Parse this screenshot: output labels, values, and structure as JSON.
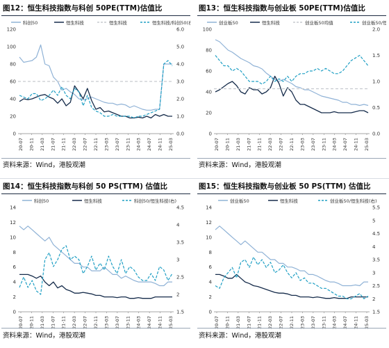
{
  "source_text": "资料来源：Wind，港股观潮",
  "colors": {
    "light_blue": "#8fb2d6",
    "navy": "#152b4a",
    "ref_dash": "#c6cacf",
    "cyan": "#1f9fc4"
  },
  "chart_data": [
    {
      "type": "line",
      "title": "图12：恒生科技指数与科创 50PE(TTM)估值比",
      "xticks": [
        "20-07",
        "20-11",
        "21-03",
        "21-07",
        "21-11",
        "22-03",
        "22-07",
        "22-11",
        "23-03",
        "23-07",
        "23-11",
        "24-03",
        "24-07",
        "24-11",
        "25-03"
      ],
      "ylim_left": [
        0,
        120
      ],
      "yticks_left": [
        0,
        20,
        40,
        60,
        80,
        100,
        120
      ],
      "ylim_right": [
        0,
        6
      ],
      "yticks_right": [
        "0.0",
        "1.0",
        "2.0",
        "3.0",
        "4.0",
        "5.0",
        "6.0"
      ],
      "legend": [
        "科创50",
        "恒生科技",
        "恒生科技",
        "恒生科技/科创50(右)"
      ],
      "series": [
        {
          "name": "科创50",
          "axis": "left",
          "style": "light",
          "values": [
            88,
            82,
            83,
            84,
            88,
            102,
            80,
            78,
            65,
            60,
            50,
            52,
            48,
            45,
            40,
            39,
            40,
            42,
            40,
            38,
            36,
            35,
            35,
            33,
            34,
            33,
            30,
            32,
            30,
            28,
            27,
            27,
            28,
            28,
            80,
            80,
            80
          ]
        },
        {
          "name": "恒生科技",
          "axis": "left",
          "style": "navy",
          "values": [
            37,
            40,
            39,
            40,
            42,
            44,
            45,
            42,
            40,
            35,
            40,
            32,
            36,
            55,
            48,
            40,
            52,
            38,
            28,
            30,
            25,
            26,
            24,
            22,
            20,
            20,
            18,
            18,
            19,
            18,
            20,
            18,
            22,
            20,
            22,
            20,
            20
          ]
        },
        {
          "name": "恒生科技",
          "axis": "left",
          "style": "refline",
          "const": 60
        },
        {
          "name": "恒生科技/科创50(右)",
          "axis": "right",
          "style": "cyan",
          "values": [
            2.2,
            2.1,
            2.0,
            2.3,
            2.3,
            1.9,
            2.0,
            2.2,
            2.5,
            2.2,
            2.7,
            2.2,
            2.0,
            2.6,
            2.4,
            1.6,
            2.2,
            1.5,
            1.3,
            1.2,
            1.0,
            1.0,
            1.1,
            1.0,
            1.0,
            1.0,
            1.0,
            0.9,
            1.0,
            1.0,
            1.1,
            1.2,
            1.3,
            1.4,
            4.0,
            4.2,
            3.9
          ]
        }
      ]
    },
    {
      "type": "line",
      "title": "图13：恒生科技指数与创业板 50PE(TTM)估值比",
      "xticks": [
        "20-07",
        "20-11",
        "21-03",
        "21-07",
        "21-11",
        "22-03",
        "22-07",
        "22-11",
        "23-03",
        "23-07",
        "23-11",
        "24-03",
        "24-07",
        "24-11",
        "25-03"
      ],
      "ylim_left": [
        0,
        100
      ],
      "yticks_left": [
        0,
        20,
        40,
        60,
        80,
        100
      ],
      "ylim_right": [
        0,
        2.0
      ],
      "yticks_right": [
        "0.0",
        "0.5",
        "1.0",
        "1.5",
        "2.0"
      ],
      "legend": [
        "创业板50",
        "恒生科技",
        "创业板50均值",
        "创业板50/恒生科技(右)"
      ],
      "series": [
        {
          "name": "创业板50",
          "axis": "left",
          "style": "light",
          "values": [
            90,
            88,
            84,
            80,
            78,
            75,
            72,
            70,
            68,
            65,
            64,
            62,
            58,
            55,
            52,
            50,
            52,
            50,
            48,
            45,
            44,
            42,
            42,
            40,
            38,
            36,
            35,
            34,
            33,
            32,
            30,
            30,
            28,
            28,
            27,
            28,
            27
          ]
        },
        {
          "name": "恒生科技",
          "axis": "left",
          "style": "navy",
          "values": [
            40,
            42,
            45,
            48,
            50,
            46,
            40,
            38,
            44,
            42,
            42,
            38,
            40,
            44,
            55,
            48,
            36,
            44,
            40,
            32,
            28,
            28,
            26,
            24,
            22,
            20,
            20,
            20,
            21,
            20,
            20,
            20,
            20,
            21,
            22,
            22,
            20
          ]
        },
        {
          "name": "创业板50均值",
          "axis": "left",
          "style": "refline",
          "const": 43
        },
        {
          "name": "创业板50/恒生科技(右)",
          "axis": "right",
          "style": "cyan",
          "values": [
            1.5,
            1.4,
            1.3,
            1.3,
            1.2,
            1.25,
            1.2,
            1.1,
            1.0,
            1.0,
            1.0,
            0.95,
            1.0,
            1.1,
            1.0,
            1.05,
            1.0,
            1.1,
            1.0,
            1.1,
            1.15,
            1.15,
            1.2,
            1.2,
            1.25,
            1.2,
            1.25,
            1.2,
            1.15,
            1.15,
            1.2,
            1.3,
            1.4,
            1.45,
            1.5,
            1.4,
            1.3
          ]
        }
      ]
    },
    {
      "type": "line",
      "title": "图14：恒生科技指数与科创 50 PS(TTM) 估值比",
      "xticks": [
        "20-07",
        "20-11",
        "21-03",
        "21-07",
        "21-11",
        "22-03",
        "22-07",
        "22-11",
        "23-03",
        "23-07",
        "23-11",
        "24-03",
        "24-07",
        "24-11",
        "25-03"
      ],
      "ylim_left": [
        0,
        14
      ],
      "yticks_left": [
        0,
        2,
        4,
        6,
        8,
        10,
        12,
        14
      ],
      "ylim_right": [
        1.5,
        4.5
      ],
      "yticks_right": [
        "1.5",
        "2",
        "2.5",
        "3",
        "3.5",
        "4",
        "4.5"
      ],
      "legend": [
        "科创50",
        "恒生科技",
        "科创50/恒生科技(右)"
      ],
      "series": [
        {
          "name": "科创50",
          "axis": "left",
          "style": "light",
          "values": [
            11.5,
            11,
            11.5,
            11,
            10.5,
            10,
            9.5,
            10,
            9,
            8.5,
            8,
            7.5,
            7,
            6.5,
            6.5,
            6,
            6,
            5.5,
            5.5,
            5.5,
            6,
            5.5,
            5,
            5,
            4.5,
            4.8,
            4.5,
            4.2,
            4,
            4,
            4,
            4,
            3.8,
            3.5,
            3.5,
            4,
            4
          ]
        },
        {
          "name": "恒生科技",
          "axis": "left",
          "style": "navy",
          "values": [
            5,
            5,
            5,
            4.8,
            4.5,
            4.8,
            4,
            3.5,
            4,
            3.2,
            3.5,
            3,
            2.8,
            2.5,
            2.5,
            2.6,
            2.5,
            2.4,
            2.2,
            2.2,
            2,
            2,
            2,
            1.9,
            2,
            2,
            1.8,
            1.8,
            1.9,
            1.8,
            1.8,
            1.8,
            2,
            2,
            2,
            2,
            2
          ]
        },
        {
          "name": "科创50/恒生科技(右)",
          "axis": "right",
          "style": "cyan",
          "values": [
            2.2,
            2.5,
            2.2,
            2.4,
            2.1,
            2.0,
            3.0,
            3.2,
            2.8,
            3.0,
            3.3,
            3.4,
            3.0,
            3.1,
            3.0,
            2.6,
            2.8,
            3.1,
            2.7,
            2.9,
            2.7,
            3.1,
            2.8,
            2.6,
            3.0,
            2.6,
            2.8,
            2.7,
            2.5,
            2.4,
            2.4,
            2.6,
            2.4,
            2.8,
            2.7,
            2.4,
            2.6
          ]
        }
      ]
    },
    {
      "type": "line",
      "title": "图15：恒生科技指数与创业板 50 PS(TTM) 估值比",
      "xticks": [
        "20-07",
        "20-11",
        "21-03",
        "21-07",
        "21-11",
        "22-03",
        "22-07",
        "22-11",
        "23-03",
        "23-07",
        "23-11",
        "24-03",
        "24-07",
        "24-11",
        "25-03"
      ],
      "ylim_left": [
        0,
        14
      ],
      "yticks_left": [
        0,
        2,
        4,
        6,
        8,
        10,
        12,
        14
      ],
      "ylim_right": [
        1.5,
        5.5
      ],
      "yticks_right": [
        "1.5",
        "2",
        "2.5",
        "3",
        "3.5",
        "4",
        "4.5",
        "5",
        "5.5"
      ],
      "legend": [
        "创业板50",
        "恒生科技",
        "创业板50/恒生科技(右)"
      ],
      "series": [
        {
          "name": "创业板50",
          "axis": "left",
          "style": "light",
          "values": [
            11,
            11.5,
            11,
            10.5,
            10,
            9.5,
            9,
            9.5,
            9,
            8.5,
            8,
            8,
            7.5,
            7,
            7,
            6.5,
            6.5,
            6,
            6,
            5.8,
            5.5,
            5.5,
            5,
            5,
            4.8,
            4.5,
            4.2,
            4,
            4,
            3.8,
            3.5,
            3.5,
            3.5,
            3.6,
            3.5,
            4,
            4
          ]
        },
        {
          "name": "恒生科技",
          "axis": "left",
          "style": "navy",
          "values": [
            5,
            5,
            4.8,
            4.5,
            4.5,
            5,
            4.5,
            4,
            3.8,
            3.5,
            3.4,
            3.2,
            3,
            2.8,
            2.6,
            2.5,
            2.5,
            2.4,
            2.2,
            2.2,
            2,
            2,
            2,
            1.9,
            2,
            1.9,
            1.8,
            1.8,
            1.9,
            1.8,
            1.8,
            1.8,
            2,
            2,
            2,
            2,
            2
          ]
        },
        {
          "name": "创业板50/恒生科技(右)",
          "axis": "right",
          "style": "cyan",
          "values": [
            2.5,
            2.4,
            2.8,
            3.0,
            3.2,
            2.8,
            3.4,
            3.5,
            3.2,
            3.6,
            3.3,
            3.5,
            3.2,
            3.4,
            3.0,
            3.1,
            3.3,
            3.0,
            2.8,
            3.0,
            2.7,
            2.8,
            2.6,
            2.6,
            2.5,
            2.4,
            2.4,
            2.3,
            2.2,
            2.1,
            2.1,
            2.0,
            2.0,
            2.1,
            2.2,
            2.0,
            2.1
          ]
        }
      ]
    }
  ]
}
